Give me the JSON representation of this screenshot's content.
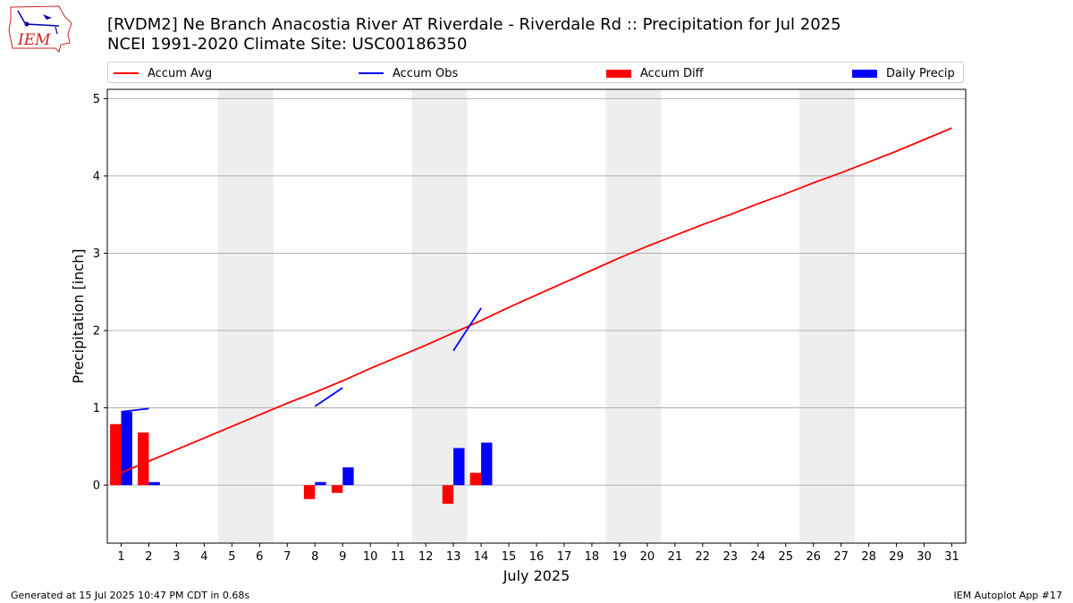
{
  "header": {
    "title_line1": "[RVDM2] Ne Branch Anacostia River  AT Riverdale - Riverdale Rd :: Precipitation for Jul 2025",
    "title_line2": "NCEI 1991-2020 Climate Site: USC00186350",
    "logo_text": "IEM"
  },
  "footer": {
    "left": "Generated at 15 Jul 2025 10:47 PM CDT in 0.68s",
    "right": "IEM Autoplot App #17"
  },
  "colors": {
    "accum_avg": "#ff0000",
    "accum_obs": "#0000ff",
    "accum_diff": "#ff0000",
    "daily_precip": "#0000ff",
    "weekend_shade": "#eeeeee",
    "grid": "#b0b0b0"
  },
  "chart_data": {
    "type": "bar",
    "xlabel": "July 2025",
    "ylabel": "Precipitation [inch]",
    "xlim": [
      0.5,
      31.5
    ],
    "ylim": [
      -0.75,
      5.12
    ],
    "x_ticks": [
      1,
      2,
      3,
      4,
      5,
      6,
      7,
      8,
      9,
      10,
      11,
      12,
      13,
      14,
      15,
      16,
      17,
      18,
      19,
      20,
      21,
      22,
      23,
      24,
      25,
      26,
      27,
      28,
      29,
      30,
      31
    ],
    "y_ticks": [
      0,
      1,
      2,
      3,
      4,
      5
    ],
    "grid": "horizontal",
    "legend_placement": "top",
    "legend": [
      "Accum Avg",
      "Accum Obs",
      "Accum Diff",
      "Daily Precip"
    ],
    "weekend_shading": [
      [
        4.5,
        6.5
      ],
      [
        11.5,
        13.5
      ],
      [
        18.5,
        20.5
      ],
      [
        25.5,
        27.5
      ]
    ],
    "accum_avg": {
      "x": [
        1,
        2,
        3,
        4,
        5,
        6,
        7,
        8,
        9,
        10,
        11,
        12,
        13,
        14,
        15,
        16,
        17,
        18,
        19,
        20,
        21,
        22,
        23,
        24,
        25,
        26,
        27,
        28,
        29,
        30,
        31
      ],
      "y": [
        0.16,
        0.31,
        0.46,
        0.61,
        0.76,
        0.91,
        1.06,
        1.2,
        1.35,
        1.51,
        1.66,
        1.81,
        1.97,
        2.13,
        2.3,
        2.46,
        2.62,
        2.78,
        2.94,
        3.09,
        3.23,
        3.37,
        3.5,
        3.64,
        3.77,
        3.91,
        4.04,
        4.18,
        4.32,
        4.47,
        4.62
      ]
    },
    "accum_obs_segments": [
      {
        "x": [
          1,
          2
        ],
        "y": [
          0.95,
          0.99
        ]
      },
      {
        "x": [
          8,
          9
        ],
        "y": [
          1.02,
          1.26
        ]
      },
      {
        "x": [
          13,
          14
        ],
        "y": [
          1.74,
          2.29
        ]
      }
    ],
    "accum_diff": {
      "x": [
        1,
        2,
        8,
        9,
        13,
        14
      ],
      "y": [
        0.79,
        0.68,
        -0.18,
        -0.1,
        -0.24,
        0.16
      ]
    },
    "daily_precip": {
      "x": [
        1,
        2,
        8,
        9,
        13,
        14
      ],
      "y": [
        0.95,
        0.04,
        0.04,
        0.23,
        0.48,
        0.55
      ]
    }
  }
}
